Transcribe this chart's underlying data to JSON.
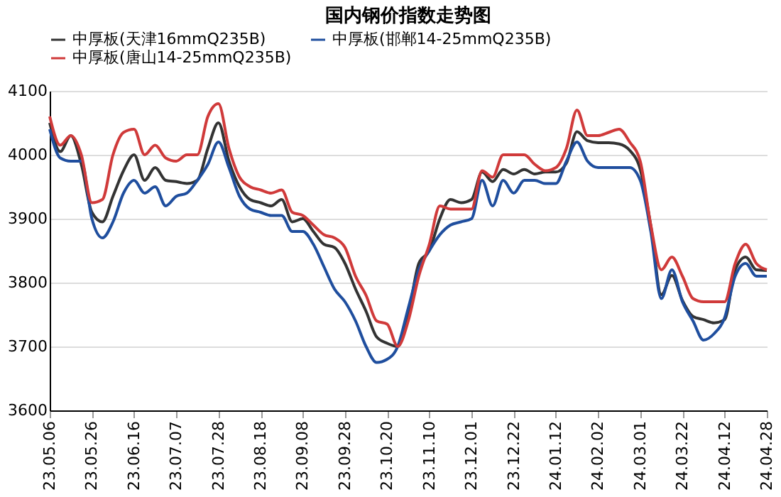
{
  "chart_data": {
    "type": "line",
    "title": "国内钢价指数走势图",
    "categories": [
      "23.05.06",
      null,
      null,
      null,
      "23.05.26",
      null,
      null,
      null,
      "23.06.16",
      null,
      null,
      null,
      "23.07.07",
      null,
      null,
      null,
      "23.07.28",
      null,
      null,
      null,
      "23.08.18",
      null,
      null,
      null,
      "23.09.08",
      null,
      null,
      null,
      "23.09.28",
      null,
      null,
      null,
      "23.10.20",
      null,
      null,
      null,
      "23.11.10",
      null,
      null,
      null,
      "23.12.01",
      null,
      null,
      null,
      "23.12.22",
      null,
      null,
      null,
      "24.01.12",
      null,
      null,
      null,
      "24.02.02",
      null,
      null,
      null,
      "24.03.01",
      null,
      null,
      null,
      "24.03.22",
      null,
      null,
      null,
      "24.04.12",
      null,
      null,
      null,
      "24.04.28"
    ],
    "series": [
      {
        "name": "中厚板(天津16mmQ235B)",
        "color": "#333333",
        "values": [
          4050,
          4005,
          4030,
          3985,
          3910,
          3895,
          3935,
          3975,
          4000,
          3960,
          3980,
          3960,
          3958,
          3955,
          3960,
          4010,
          4050,
          3990,
          3950,
          3930,
          3925,
          3920,
          3930,
          3895,
          3900,
          3880,
          3860,
          3855,
          3830,
          3790,
          3755,
          3715,
          3705,
          3700,
          3750,
          3830,
          3850,
          3900,
          3930,
          3925,
          3930,
          3973,
          3958,
          3977,
          3970,
          3977,
          3970,
          3973,
          3973,
          3987,
          4036,
          4022,
          4019,
          4019,
          4017,
          4007,
          3977,
          3889,
          3781,
          3811,
          3772,
          3747,
          3742,
          3737,
          3742,
          3820,
          3840,
          3820,
          3819
        ]
      },
      {
        "name": "中厚板(邯郸14-25mmQ235B)",
        "color": "#1f4e9e",
        "values": [
          4040,
          3995,
          3990,
          3990,
          3900,
          3870,
          3895,
          3940,
          3960,
          3940,
          3950,
          3920,
          3935,
          3940,
          3960,
          3985,
          4020,
          3980,
          3935,
          3915,
          3910,
          3905,
          3905,
          3880,
          3880,
          3860,
          3825,
          3790,
          3770,
          3740,
          3700,
          3675,
          3680,
          3700,
          3760,
          3820,
          3850,
          3875,
          3890,
          3895,
          3900,
          3960,
          3920,
          3960,
          3940,
          3960,
          3960,
          3955,
          3955,
          3990,
          4020,
          3990,
          3980,
          3980,
          3980,
          3980,
          3960,
          3880,
          3775,
          3820,
          3770,
          3740,
          3710,
          3720,
          3745,
          3810,
          3830,
          3810,
          3810
        ]
      },
      {
        "name": "中厚板(唐山14-25mmQ235B)",
        "color": "#d03a3a",
        "values": [
          4060,
          4015,
          4030,
          4000,
          3925,
          3930,
          4000,
          4035,
          4040,
          4000,
          4015,
          3995,
          3990,
          4000,
          4000,
          4060,
          4080,
          4010,
          3965,
          3950,
          3945,
          3940,
          3945,
          3910,
          3905,
          3890,
          3875,
          3870,
          3855,
          3810,
          3780,
          3740,
          3735,
          3700,
          3740,
          3810,
          3860,
          3920,
          3915,
          3915,
          3915,
          3975,
          3965,
          4000,
          4000,
          4000,
          3985,
          3975,
          3980,
          4010,
          4070,
          4030,
          4030,
          4035,
          4040,
          4020,
          3990,
          3890,
          3820,
          3840,
          3810,
          3775,
          3770,
          3770,
          3770,
          3830,
          3860,
          3830,
          3820
        ]
      }
    ],
    "ylim": [
      3600,
      4100
    ],
    "yticks": [
      3600,
      3700,
      3800,
      3900,
      4000,
      4100
    ],
    "grid": "y",
    "legend": "top",
    "marker": "none",
    "line_style": "solid"
  }
}
